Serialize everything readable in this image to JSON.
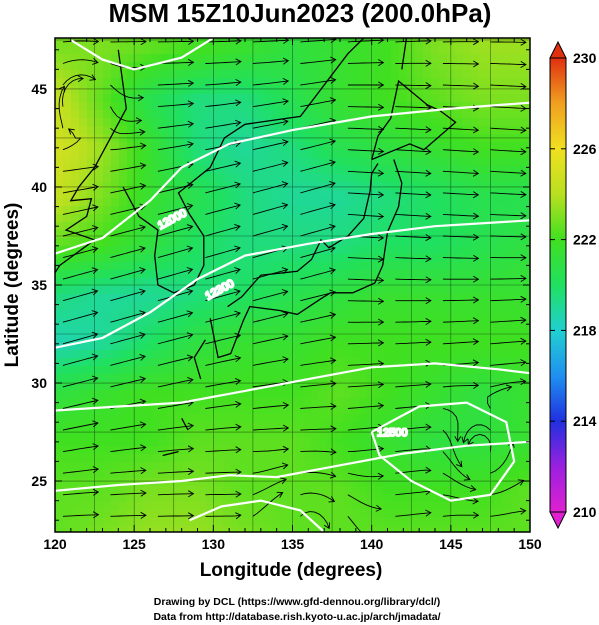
{
  "chart_data": {
    "type": "heatmap",
    "title": "MSM 15Z10Jun2023 (200.0hPa)",
    "xlabel": "Longitude (degrees)",
    "ylabel": "Latitude  (degrees)",
    "xlim": [
      120,
      150
    ],
    "ylim": [
      22.4,
      47.6
    ],
    "xticks": [
      "120",
      "125",
      "130",
      "135",
      "140",
      "145",
      "150"
    ],
    "yticks": [
      "25",
      "30",
      "35",
      "40",
      "45"
    ],
    "colorbar": {
      "range": [
        210,
        230
      ],
      "ticks": [
        "210",
        "214",
        "218",
        "222",
        "226",
        "230"
      ],
      "colors": [
        "#e020d0",
        "#9a20e0",
        "#2030e0",
        "#1f90f0",
        "#20d0d0",
        "#20e060",
        "#40e020",
        "#b8e020",
        "#f0e020",
        "#f0a020",
        "#e03010"
      ]
    },
    "field": {
      "lons": [
        120,
        123,
        126,
        129,
        132,
        135,
        138,
        141,
        144,
        147,
        150
      ],
      "lats": [
        47,
        44.5,
        42,
        39.5,
        37,
        34.5,
        32,
        29.5,
        27,
        24.5,
        22
      ],
      "values": [
        [
          223.0,
          223.0,
          222.5,
          222.0,
          221.5,
          221.0,
          221.5,
          222.0,
          223.0,
          223.5,
          223.5
        ],
        [
          224.5,
          222.5,
          220.5,
          219.5,
          219.5,
          220.5,
          221.5,
          222.0,
          222.5,
          223.0,
          223.0
        ],
        [
          225.0,
          223.5,
          221.5,
          219.5,
          219.0,
          219.5,
          220.5,
          221.0,
          221.5,
          222.0,
          222.0
        ],
        [
          224.5,
          223.0,
          221.5,
          220.5,
          219.5,
          219.0,
          219.0,
          219.5,
          220.0,
          220.5,
          220.5
        ],
        [
          222.5,
          222.0,
          221.0,
          220.0,
          219.5,
          219.5,
          219.5,
          220.0,
          220.0,
          220.5,
          221.0
        ],
        [
          219.5,
          219.0,
          219.0,
          219.5,
          220.0,
          220.5,
          221.0,
          221.5,
          221.5,
          221.5,
          221.5
        ],
        [
          218.5,
          219.0,
          220.0,
          221.0,
          221.5,
          221.5,
          222.0,
          222.0,
          222.0,
          222.0,
          222.0
        ],
        [
          221.0,
          221.5,
          222.0,
          222.0,
          222.0,
          222.0,
          222.5,
          222.0,
          221.5,
          221.0,
          221.5
        ],
        [
          222.0,
          222.0,
          222.0,
          222.5,
          222.5,
          222.5,
          222.0,
          221.5,
          221.0,
          221.0,
          221.5
        ],
        [
          222.5,
          222.5,
          223.0,
          223.0,
          222.5,
          222.5,
          222.5,
          222.0,
          222.0,
          222.0,
          222.5
        ],
        [
          222.5,
          223.0,
          223.5,
          223.5,
          223.0,
          222.5,
          222.5,
          222.5,
          222.5,
          222.5,
          222.5
        ]
      ]
    },
    "contour_labels": [
      "12000",
      "12300",
      "12500"
    ],
    "grid": true
  },
  "credits": [
    "Drawing by DCL (https://www.gfd-dennou.org/library/dcl/)",
    "Data from http://database.rish.kyoto-u.ac.jp/arch/jmadata/"
  ]
}
